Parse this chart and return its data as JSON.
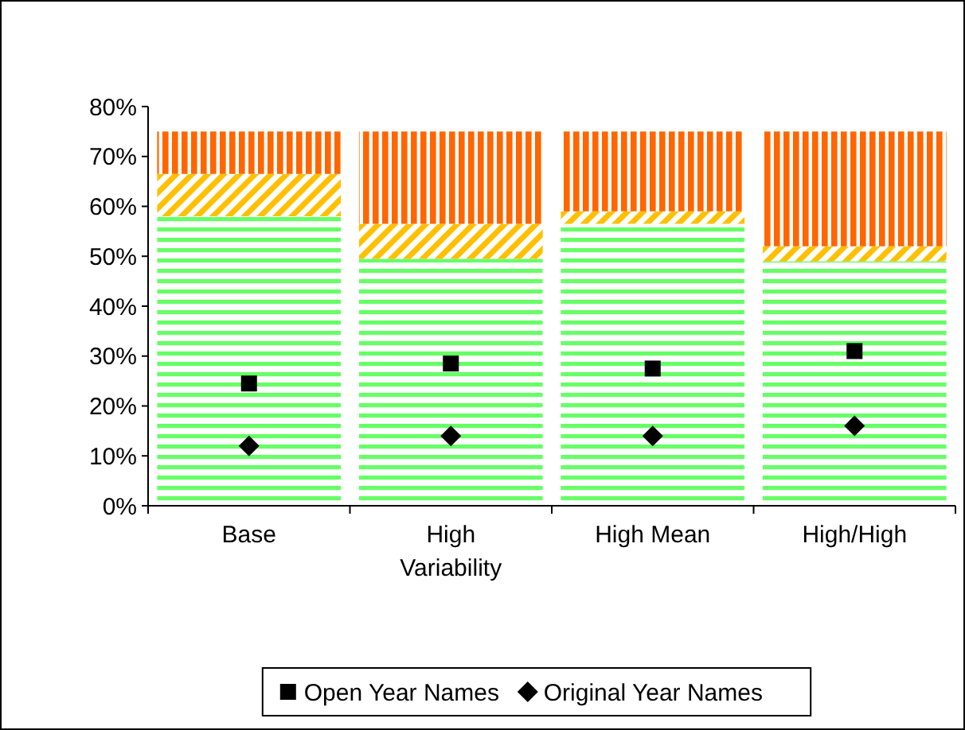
{
  "chart_data": {
    "type": "bar",
    "stacked": true,
    "categories": [
      "Base",
      "High Variability",
      "High Mean",
      "High/High"
    ],
    "series": [
      {
        "color": "#66ff66",
        "values": [
          58,
          49.5,
          56.5,
          49
        ]
      },
      {
        "color": "#ffc000",
        "values": [
          8.5,
          7,
          2.5,
          3
        ]
      },
      {
        "color": "#ff6600",
        "values": [
          8.5,
          18.5,
          16,
          23
        ]
      },
      {
        "type": "scatter",
        "name": "Open Year Names",
        "color": "#000000",
        "marker": "square",
        "x": [
          "Base",
          "High Variability",
          "High Mean",
          "High/High"
        ],
        "values": [
          24.5,
          28.5,
          27.5,
          31
        ]
      },
      {
        "type": "scatter",
        "name": "Original Year Names",
        "color": "#000000",
        "marker": "diamond",
        "x": [
          "Base",
          "High Variability",
          "High Mean",
          "High/High"
        ],
        "values": [
          12,
          14,
          14,
          16
        ]
      }
    ],
    "ylim": [
      0,
      80
    ],
    "yticks": [
      {
        "value": 0,
        "label": "0%"
      },
      {
        "value": 10,
        "label": "10%"
      },
      {
        "value": 20,
        "label": "20%"
      },
      {
        "value": 30,
        "label": "30%"
      },
      {
        "value": 40,
        "label": "40%"
      },
      {
        "value": 50,
        "label": "50%"
      },
      {
        "value": 60,
        "label": "60%"
      },
      {
        "value": 70,
        "label": "70%"
      },
      {
        "value": 80,
        "label": "80%"
      }
    ],
    "grid": false,
    "legend": "bottom"
  }
}
